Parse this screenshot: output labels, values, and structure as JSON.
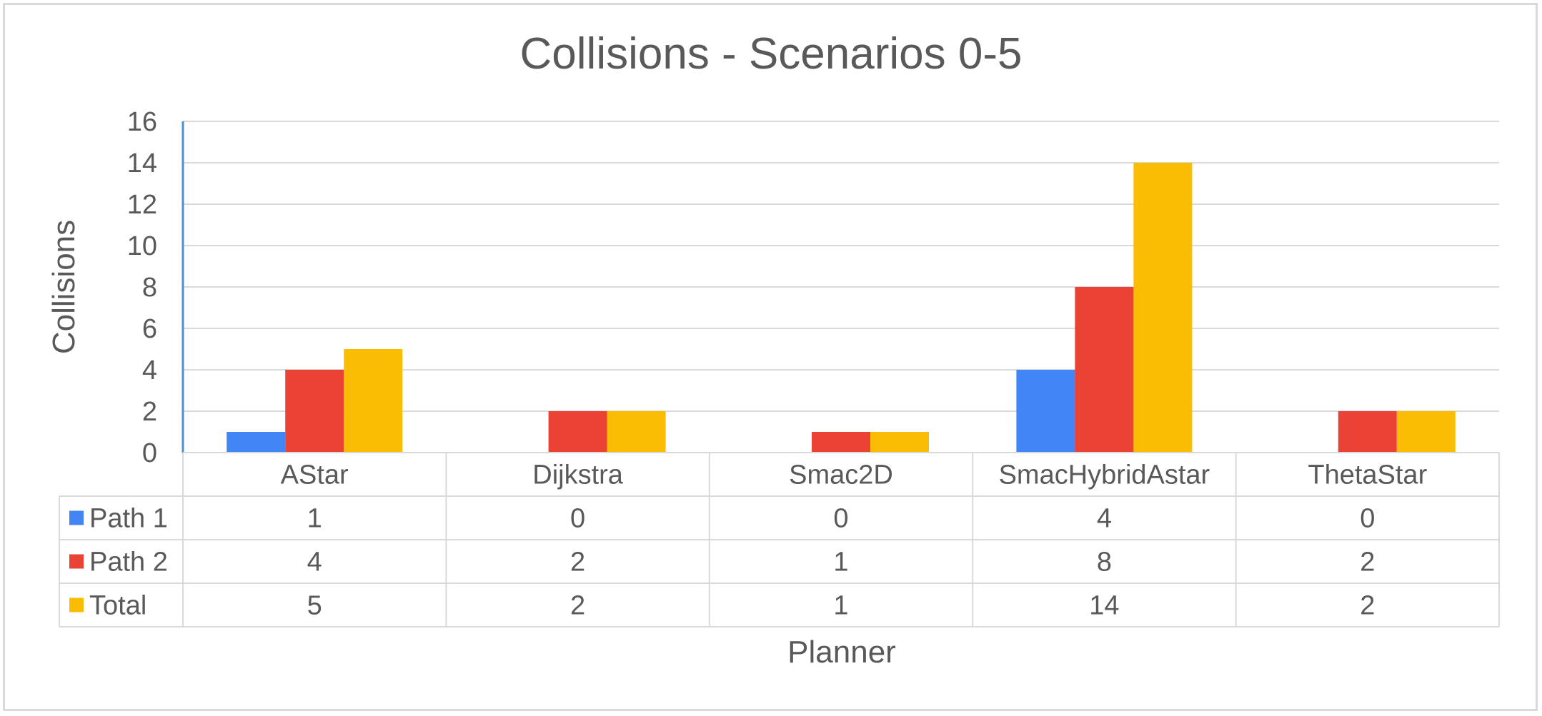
{
  "chart_data": {
    "type": "bar",
    "title": "Collisions - Scenarios 0-5",
    "xlabel": "Planner",
    "ylabel": "Collisions",
    "ylim": [
      0,
      16
    ],
    "yticks": [
      0,
      2,
      4,
      6,
      8,
      10,
      12,
      14,
      16
    ],
    "grid": true,
    "legend": "data-table",
    "categories": [
      "AStar",
      "Dijkstra",
      "Smac2D",
      "SmacHybridAstar",
      "ThetaStar"
    ],
    "series": [
      {
        "name": "Path 1",
        "color": "#4285F4",
        "values": [
          1,
          0,
          0,
          4,
          0
        ]
      },
      {
        "name": "Path 2",
        "color": "#EA4335",
        "values": [
          4,
          2,
          1,
          8,
          2
        ]
      },
      {
        "name": "Total",
        "color": "#FBBC04",
        "values": [
          5,
          2,
          1,
          14,
          2
        ]
      }
    ]
  }
}
